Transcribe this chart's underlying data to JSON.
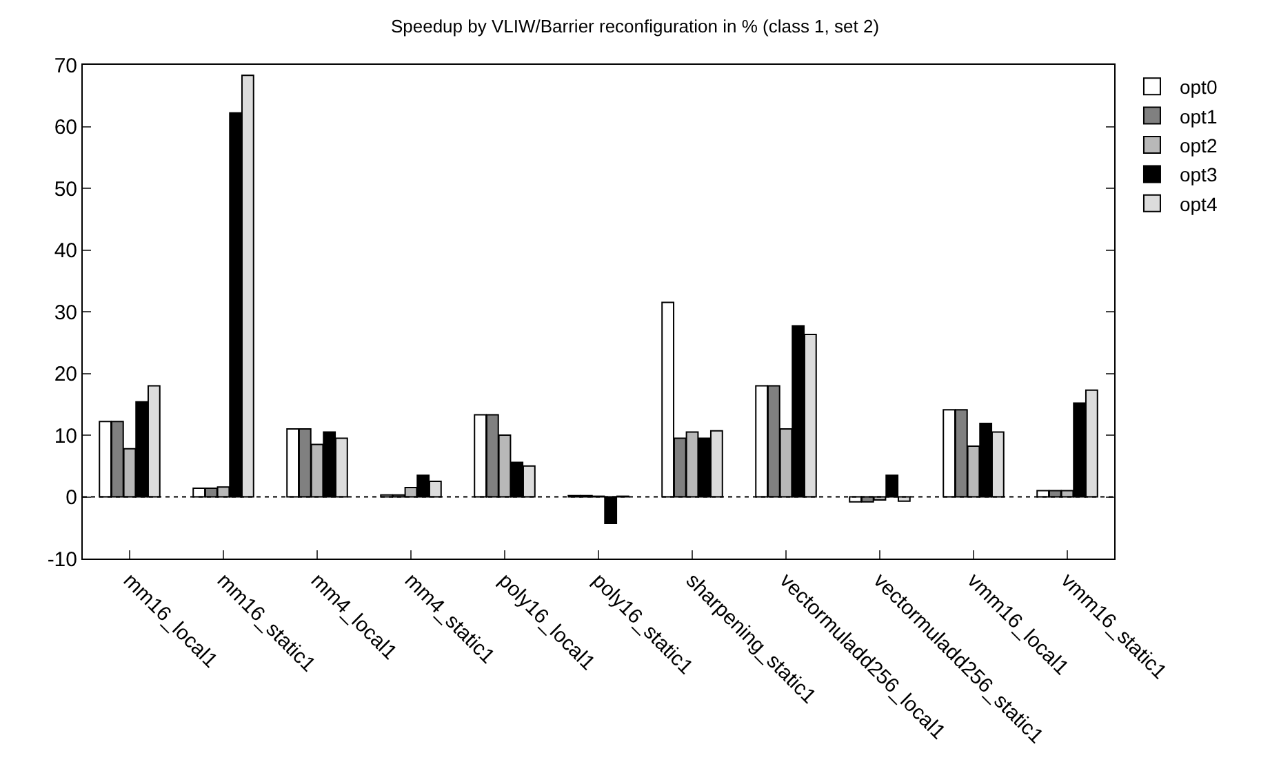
{
  "chart_data": {
    "type": "bar",
    "title": "Speedup by VLIW/Barrier reconfiguration in % (class 1, set 2)",
    "categories": [
      "mm16_local1",
      "mm16_static1",
      "mm4_local1",
      "mm4_static1",
      "poly16_local1",
      "poly16_static1",
      "sharpening_static1",
      "vectormuladd256_local1",
      "vectormuladd256_static1",
      "vmm16_local1",
      "vmm16_static1"
    ],
    "series": [
      {
        "name": "opt0",
        "color": "#ffffff",
        "values": [
          12.2,
          1.4,
          11,
          0.3,
          13.3,
          0.2,
          31.5,
          18,
          -0.8,
          14.1,
          1
        ]
      },
      {
        "name": "opt1",
        "color": "#808080",
        "values": [
          12.2,
          1.4,
          11,
          0.3,
          13.3,
          0.2,
          9.5,
          18,
          -0.8,
          14.1,
          1
        ]
      },
      {
        "name": "opt2",
        "color": "#b8b8b8",
        "values": [
          7.8,
          1.6,
          8.5,
          1.5,
          10,
          0.1,
          10.5,
          11,
          -0.5,
          8.2,
          1
        ]
      },
      {
        "name": "opt3",
        "color": "#000000",
        "values": [
          15.4,
          62.2,
          10.5,
          3.5,
          5.6,
          -4.3,
          9.5,
          27.7,
          3.5,
          11.9,
          15.2
        ]
      },
      {
        "name": "opt4",
        "color": "#dcdcdc",
        "values": [
          18,
          68.3,
          9.5,
          2.5,
          5,
          0.1,
          10.7,
          26.3,
          -0.7,
          10.5,
          17.3
        ]
      }
    ],
    "ylim": [
      -10,
      70
    ],
    "yticks": [
      -10,
      0,
      10,
      20,
      30,
      40,
      50,
      60,
      70
    ],
    "grid": false,
    "legend": "top right",
    "ref_lines": [
      {
        "axis": "y",
        "value": 0,
        "line_style": "dotted",
        "color": "#000000"
      }
    ]
  }
}
